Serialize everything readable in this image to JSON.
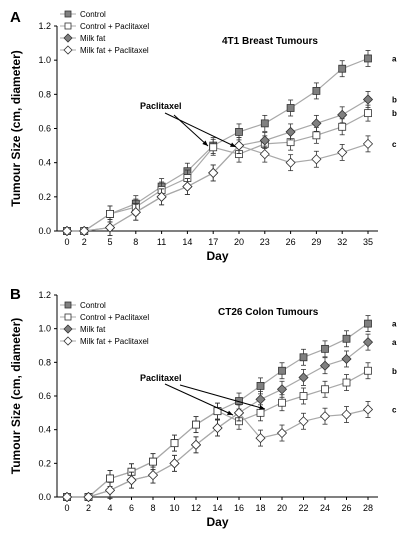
{
  "chart_data": [
    {
      "type": "line",
      "panel": "A",
      "title": "4T1 Breast Tumours",
      "xlabel": "Day",
      "ylabel": "Tumour Size (cm, diameter)",
      "x": [
        0,
        2,
        5,
        8,
        11,
        14,
        17,
        20,
        23,
        26,
        29,
        32,
        35
      ],
      "xticks": [
        "0",
        "2",
        "5",
        "8",
        "11",
        "14",
        "17",
        "20",
        "23",
        "26",
        "29",
        "32",
        "35"
      ],
      "ylim": [
        0,
        1.2
      ],
      "yticks": [
        "0.0",
        "0.2",
        "0.4",
        "0.6",
        "0.8",
        "1.0",
        "1.2"
      ],
      "annotation": "Paclitaxel",
      "series": [
        {
          "name": "Control",
          "marker": "square",
          "fill": "#808080",
          "line": "#a8a8a8",
          "values": [
            0,
            0,
            0.1,
            0.16,
            0.26,
            0.35,
            0.5,
            0.58,
            0.63,
            0.72,
            0.82,
            0.95,
            1.01
          ],
          "sig": "a"
        },
        {
          "name": "Control + Paclitaxel",
          "marker": "square",
          "fill": "#ffffff",
          "line": "#a8a8a8",
          "values": [
            0,
            0,
            0.1,
            0.14,
            0.24,
            0.31,
            0.49,
            0.45,
            0.51,
            0.52,
            0.56,
            0.61,
            0.69
          ],
          "sig": "b"
        },
        {
          "name": "Milk fat",
          "marker": "diamond",
          "fill": "#808080",
          "line": "#a8a8a8",
          "values": [
            0,
            0,
            0.02,
            0.11,
            0.2,
            0.26,
            0.34,
            0.5,
            0.53,
            0.58,
            0.63,
            0.68,
            0.77
          ],
          "sig": "b"
        },
        {
          "name": "Milk fat + Paclitaxel",
          "marker": "diamond",
          "fill": "#ffffff",
          "line": "#a8a8a8",
          "values": [
            0,
            0,
            0.02,
            0.11,
            0.2,
            0.26,
            0.34,
            0.5,
            0.45,
            0.4,
            0.42,
            0.46,
            0.51
          ],
          "sig": "c"
        }
      ]
    },
    {
      "type": "line",
      "panel": "B",
      "title": "CT26 Colon Tumours",
      "xlabel": "Day",
      "ylabel": "Tumour Size (cm, diameter)",
      "x": [
        0,
        2,
        4,
        6,
        8,
        10,
        12,
        14,
        16,
        18,
        20,
        22,
        24,
        26,
        28
      ],
      "xticks": [
        "0",
        "2",
        "4",
        "6",
        "8",
        "10",
        "12",
        "14",
        "16",
        "18",
        "20",
        "22",
        "24",
        "26",
        "28"
      ],
      "ylim": [
        0,
        1.2
      ],
      "yticks": [
        "0.0",
        "0.2",
        "0.4",
        "0.6",
        "0.8",
        "1.0",
        "1.2"
      ],
      "annotation": "Paclitaxel",
      "series": [
        {
          "name": "Control",
          "marker": "square",
          "fill": "#808080",
          "line": "#a8a8a8",
          "values": [
            0,
            0,
            0.11,
            0.15,
            0.21,
            0.32,
            0.43,
            0.51,
            0.57,
            0.66,
            0.75,
            0.83,
            0.88,
            0.94,
            1.03
          ],
          "sig": "a"
        },
        {
          "name": "Control + Paclitaxel",
          "marker": "square",
          "fill": "#ffffff",
          "line": "#a8a8a8",
          "values": [
            0,
            0,
            0.11,
            0.15,
            0.21,
            0.32,
            0.43,
            0.51,
            0.45,
            0.5,
            0.56,
            0.6,
            0.64,
            0.68,
            0.75
          ],
          "sig": "b"
        },
        {
          "name": "Milk fat",
          "marker": "diamond",
          "fill": "#808080",
          "line": "#a8a8a8",
          "values": [
            0,
            0,
            0.04,
            0.1,
            0.13,
            0.2,
            0.31,
            0.41,
            0.5,
            0.58,
            0.64,
            0.71,
            0.78,
            0.82,
            0.92
          ],
          "sig": "a"
        },
        {
          "name": "Milk fat + Paclitaxel",
          "marker": "diamond",
          "fill": "#ffffff",
          "line": "#a8a8a8",
          "values": [
            0,
            0,
            0.04,
            0.1,
            0.13,
            0.2,
            0.31,
            0.41,
            0.5,
            0.35,
            0.38,
            0.45,
            0.48,
            0.49,
            0.52
          ],
          "sig": "c"
        }
      ]
    }
  ]
}
